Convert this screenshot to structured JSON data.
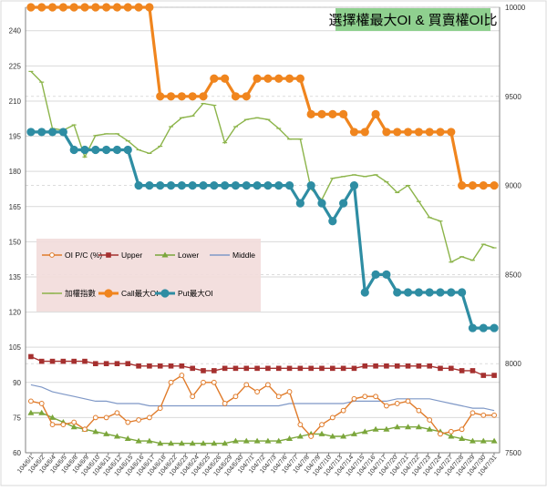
{
  "chart_data": {
    "type": "line",
    "title": "選擇權最大OI & 買賣權OI比",
    "left_axis": {
      "ylim": [
        60,
        250
      ],
      "ticks": [
        60,
        75,
        90,
        105,
        120,
        135,
        150,
        165,
        180,
        195,
        210,
        225,
        240
      ]
    },
    "right_axis": {
      "ylim": [
        7500,
        10000
      ],
      "ticks": [
        7500,
        8000,
        8500,
        9000,
        9500,
        10000
      ]
    },
    "categories": [
      "104/6/1",
      "104/6/2",
      "104/6/3",
      "104/6/4",
      "104/6/5",
      "104/6/8",
      "104/6/9",
      "104/6/10",
      "104/6/11",
      "104/6/12",
      "104/6/15",
      "104/6/16",
      "104/6/17",
      "104/6/18",
      "104/6/22",
      "104/6/23",
      "104/6/24",
      "104/6/25",
      "104/6/26",
      "104/6/29",
      "104/6/30",
      "104/7/1",
      "104/7/2",
      "104/7/3",
      "104/7/6",
      "104/7/7",
      "104/7/8",
      "104/7/9",
      "104/7/10",
      "104/7/13",
      "104/7/14",
      "104/7/15",
      "104/7/16",
      "104/7/17",
      "104/7/20",
      "104/7/21",
      "104/7/22",
      "104/7/23",
      "104/7/24",
      "104/7/27",
      "104/7/28",
      "104/7/29",
      "104/7/30",
      "104/7/31"
    ],
    "xtick_labels": [
      "104/6/1",
      "104/6/2",
      "104/6/4",
      "104/6/5",
      "104/6/8",
      "104/6/9",
      "104/6/10",
      "104/6/11",
      "104/6/12",
      "104/6/15",
      "104/6/16",
      "104/6/17",
      "104/6/18",
      "104/6/22",
      "104/6/23",
      "104/6/24",
      "104/6/25",
      "104/6/26",
      "104/6/29",
      "104/6/30",
      "104/7/1",
      "104/7/2",
      "104/7/3",
      "104/7/6",
      "104/7/7",
      "104/7/8",
      "104/7/9",
      "104/7/10",
      "104/7/13",
      "104/7/14",
      "104/7/15",
      "104/7/16",
      "104/7/17",
      "104/7/20",
      "104/7/21",
      "104/7/22",
      "104/7/23",
      "104/7/24",
      "104/7/27",
      "104/7/28",
      "104/7/29",
      "104/7/30",
      "104/7/31"
    ],
    "series": [
      {
        "name": "OI P/C (%)",
        "axis": "left",
        "color": "#E07B2A",
        "marker": "open-circle",
        "values": [
          82,
          81,
          72,
          72,
          73,
          70,
          75,
          75,
          77,
          73,
          74,
          75,
          79,
          90,
          93,
          84,
          90,
          90,
          81,
          84,
          89,
          86,
          89,
          84,
          86,
          72,
          67,
          72,
          75,
          78,
          83,
          84,
          84,
          80,
          81,
          82,
          78,
          74,
          68,
          69,
          70,
          77,
          76,
          76
        ]
      },
      {
        "name": "Upper",
        "axis": "left",
        "color": "#A5302F",
        "marker": "square",
        "values": [
          101,
          99,
          99,
          99,
          99,
          99,
          98,
          98,
          98,
          98,
          97,
          97,
          97,
          97,
          97,
          96,
          95,
          95,
          96,
          96,
          96,
          96,
          96,
          96,
          96,
          96,
          96,
          96,
          96,
          96,
          96,
          97,
          97,
          97,
          97,
          97,
          97,
          97,
          96,
          96,
          95,
          95,
          93,
          93
        ]
      },
      {
        "name": "Lower",
        "axis": "left",
        "color": "#7BA63B",
        "marker": "triangle",
        "values": [
          77,
          77,
          75,
          73,
          71,
          70,
          69,
          68,
          67,
          66,
          65,
          65,
          64,
          64,
          64,
          64,
          64,
          64,
          64,
          65,
          65,
          65,
          65,
          65,
          66,
          67,
          68,
          68,
          67,
          67,
          68,
          69,
          70,
          70,
          71,
          71,
          71,
          70,
          69,
          67,
          66,
          65,
          65,
          65
        ]
      },
      {
        "name": "Middle",
        "axis": "left",
        "color": "#7F98C7",
        "marker": "none",
        "values": [
          89,
          88,
          86,
          85,
          84,
          83,
          82,
          82,
          81,
          81,
          81,
          80,
          80,
          80,
          80,
          80,
          80,
          80,
          80,
          80,
          80,
          80,
          80,
          80,
          81,
          81,
          81,
          81,
          81,
          81,
          82,
          82,
          82,
          82,
          83,
          83,
          83,
          83,
          82,
          81,
          80,
          79,
          79,
          78
        ]
      },
      {
        "name": "加權指數",
        "axis": "right",
        "color": "#8CB44A",
        "marker": "dash",
        "values": [
          9640,
          9580,
          9320,
          9310,
          9340,
          9160,
          9280,
          9290,
          9290,
          9250,
          9200,
          9180,
          9220,
          9330,
          9380,
          9390,
          9460,
          9450,
          9240,
          9330,
          9370,
          9380,
          9370,
          9320,
          9260,
          9260,
          8980,
          8920,
          9040,
          9050,
          9060,
          9050,
          9060,
          9020,
          8960,
          9000,
          8910,
          8820,
          8800,
          8570,
          8600,
          8580,
          8670,
          8650
        ]
      },
      {
        "name": "Call最大OI",
        "axis": "right",
        "color": "#F0851E",
        "marker": "filled-circle",
        "values": [
          10000,
          10000,
          10000,
          10000,
          10000,
          10000,
          10000,
          10000,
          10000,
          10000,
          10000,
          10000,
          9500,
          9500,
          9500,
          9500,
          9500,
          9600,
          9600,
          9500,
          9500,
          9600,
          9600,
          9600,
          9600,
          9600,
          9400,
          9400,
          9400,
          9400,
          9300,
          9300,
          9400,
          9300,
          9300,
          9300,
          9300,
          9300,
          9300,
          9300,
          9000,
          9000,
          9000,
          9000
        ]
      },
      {
        "name": "Put最大OI",
        "axis": "right",
        "color": "#2E8DA3",
        "marker": "filled-circle",
        "values": [
          9300,
          9300,
          9300,
          9300,
          9200,
          9200,
          9200,
          9200,
          9200,
          9200,
          9000,
          9000,
          9000,
          9000,
          9000,
          9000,
          9000,
          9000,
          9000,
          9000,
          9000,
          9000,
          9000,
          9000,
          9000,
          8900,
          9000,
          8900,
          8800,
          8900,
          9000,
          8400,
          8500,
          8500,
          8400,
          8400,
          8400,
          8400,
          8400,
          8400,
          8400,
          8200,
          8200,
          8200
        ]
      }
    ],
    "legend": {
      "placement": "middle-left"
    }
  }
}
